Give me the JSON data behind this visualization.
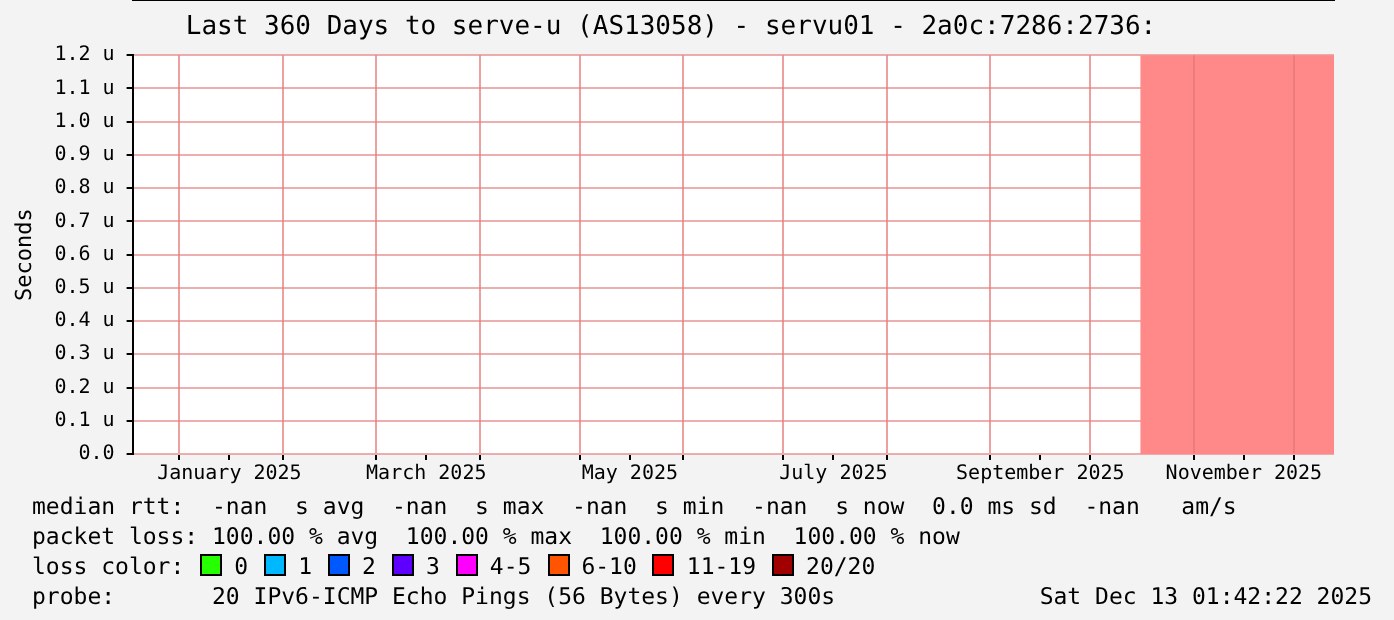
{
  "chart_data": {
    "type": "line",
    "title": "Last 360 Days to serve-u (AS13058) - servu01 - 2a0c:7286:2736:",
    "ylabel": "Seconds",
    "xlim": [
      "2024-12-18",
      "2025-12-13"
    ],
    "xticks": [
      {
        "value": "2025-01-01",
        "label": null
      },
      {
        "value": "2025-01-16",
        "label": "January 2025"
      },
      {
        "value": "2025-02-01",
        "label": null
      },
      {
        "value": "2025-03-01",
        "label": null
      },
      {
        "value": "2025-03-16",
        "label": "March 2025"
      },
      {
        "value": "2025-04-01",
        "label": null
      },
      {
        "value": "2025-05-01",
        "label": null
      },
      {
        "value": "2025-05-16",
        "label": "May 2025"
      },
      {
        "value": "2025-06-01",
        "label": null
      },
      {
        "value": "2025-07-01",
        "label": null
      },
      {
        "value": "2025-07-16",
        "label": "July 2025"
      },
      {
        "value": "2025-08-01",
        "label": null
      },
      {
        "value": "2025-09-01",
        "label": null
      },
      {
        "value": "2025-09-16",
        "label": "September 2025"
      },
      {
        "value": "2025-10-01",
        "label": null
      },
      {
        "value": "2025-11-01",
        "label": null
      },
      {
        "value": "2025-11-16",
        "label": "November 2025"
      },
      {
        "value": "2025-12-01",
        "label": null
      }
    ],
    "ylim": [
      0,
      1.2
    ],
    "yticks": [
      {
        "value": 0,
        "label": "0.0"
      },
      {
        "value": 0.1,
        "label": "0.1 u"
      },
      {
        "value": 0.2,
        "label": "0.2 u"
      },
      {
        "value": 0.3,
        "label": "0.3 u"
      },
      {
        "value": 0.4,
        "label": "0.4 u"
      },
      {
        "value": 0.5,
        "label": "0.5 u"
      },
      {
        "value": 0.6,
        "label": "0.6 u"
      },
      {
        "value": 0.7,
        "label": "0.7 u"
      },
      {
        "value": 0.8,
        "label": "0.8 u"
      },
      {
        "value": 0.9,
        "label": "0.9 u"
      },
      {
        "value": 1.0,
        "label": "1.0 u"
      },
      {
        "value": 1.1,
        "label": "1.1 u"
      },
      {
        "value": 1.2,
        "label": "1.2 u"
      }
    ],
    "bands": [
      {
        "axis": "x",
        "from": "2025-10-16",
        "to": "2025-12-13",
        "color": "#ff8888"
      }
    ],
    "grid": true,
    "annotations": [
      "median rtt:  -nan  s avg  -nan  s max  -nan  s min  -nan  s now  0.0 ms sd  -nan   am/s",
      "packet loss: 100.00 % avg  100.00 % max  100.00 % min  100.00 % now",
      "loss color:",
      "0",
      "1",
      "2",
      "3",
      "4-5",
      "6-10",
      "11-19",
      "20/20",
      "probe:       20 IPv6-ICMP Echo Pings (56 Bytes) every 300s",
      "Sat Dec 13 01:42:22 2025"
    ]
  }
}
